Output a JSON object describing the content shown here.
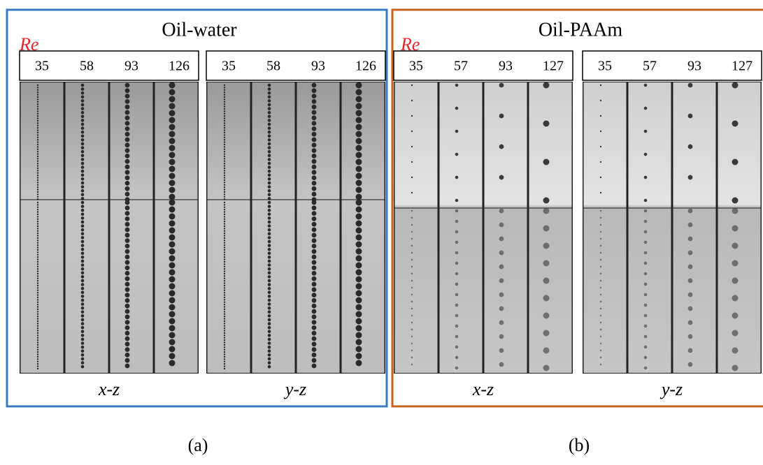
{
  "panels": [
    {
      "label": "(a)",
      "title": "Oil-water",
      "re_label": "Re",
      "views": [
        {
          "name": "x-z",
          "re": [
            35,
            58,
            93,
            126
          ]
        },
        {
          "name": "y-z",
          "re": [
            35,
            58,
            93,
            126
          ]
        }
      ]
    },
    {
      "label": "(b)",
      "title": "Oil-PAAm",
      "re_label": "Re",
      "views": [
        {
          "name": "x-z",
          "re": [
            35,
            57,
            93,
            127
          ]
        },
        {
          "name": "y-z",
          "re": [
            35,
            57,
            93,
            127
          ]
        }
      ]
    }
  ]
}
